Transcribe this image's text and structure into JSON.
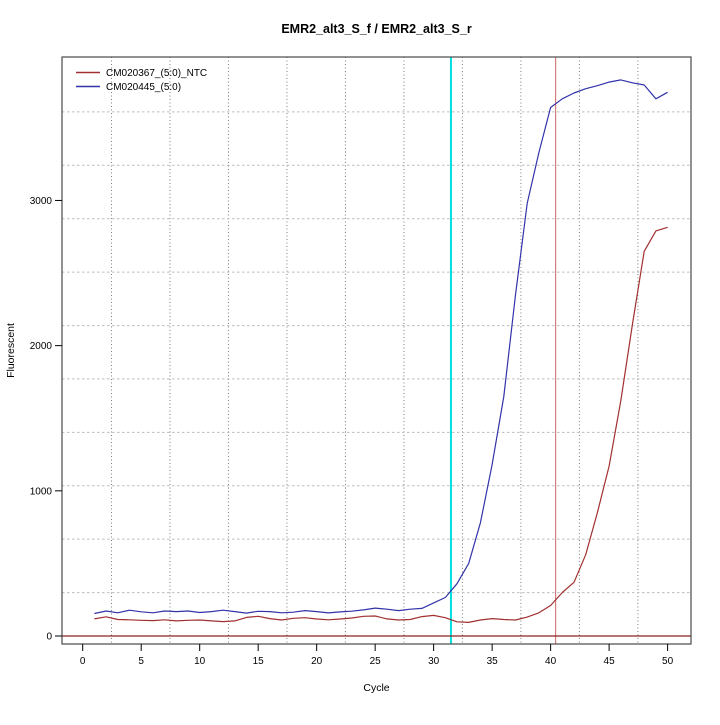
{
  "title": "EMR2_alt3_S_f / EMR2_alt3_S_r",
  "chart_data": {
    "type": "line",
    "title": "EMR2_alt3_S_f / EMR2_alt3_S_r",
    "xlabel": "Cycle",
    "ylabel": "Fluorescent",
    "legend_position": "top-left",
    "grid": true,
    "x_range": [
      -1.77,
      52.0
    ],
    "y_range": [
      -55,
      3988
    ],
    "x_ticks": [
      0,
      5,
      10,
      15,
      20,
      25,
      30,
      35,
      40,
      45,
      50
    ],
    "y_ticks": [
      0,
      1000,
      2000,
      3000
    ],
    "grid_x_lines": [
      2.46,
      7.46,
      12.46,
      17.46,
      22.46,
      27.46,
      32.46,
      37.46,
      42.46,
      47.46
    ],
    "grid_y_lines": [
      299,
      667,
      1035,
      1403,
      1771,
      2138,
      2506,
      2874,
      3242,
      3610
    ],
    "x": [
      1,
      2,
      3,
      4,
      5,
      6,
      7,
      8,
      9,
      10,
      11,
      12,
      13,
      14,
      15,
      16,
      17,
      18,
      19,
      20,
      21,
      22,
      23,
      24,
      25,
      26,
      27,
      28,
      29,
      30,
      31,
      32,
      33,
      34,
      35,
      36,
      37,
      38,
      39,
      40,
      41,
      42,
      43,
      44,
      45,
      46,
      47,
      48,
      49,
      50
    ],
    "series": [
      {
        "name": "CM020367_(5:0)_NTC",
        "color": "#A13030",
        "values": [
          118,
          132,
          114,
          112,
          108,
          106,
          112,
          104,
          108,
          110,
          104,
          99,
          104,
          128,
          136,
          120,
          110,
          122,
          126,
          117,
          112,
          117,
          124,
          136,
          138,
          118,
          110,
          114,
          134,
          142,
          126,
          98,
          94,
          110,
          120,
          114,
          110,
          130,
          160,
          210,
          300,
          370,
          560,
          850,
          1170,
          1620,
          2150,
          2650,
          2790,
          2815
        ]
      },
      {
        "name": "CM020445_(5:0)",
        "color": "#3333AA",
        "values": [
          155,
          172,
          160,
          178,
          167,
          160,
          172,
          168,
          172,
          162,
          168,
          178,
          168,
          158,
          170,
          168,
          160,
          164,
          175,
          168,
          159,
          166,
          171,
          180,
          192,
          185,
          175,
          185,
          190,
          228,
          265,
          360,
          500,
          780,
          1180,
          1650,
          2350,
          2980,
          3330,
          3640,
          3700,
          3740,
          3770,
          3790,
          3815,
          3830,
          3810,
          3795,
          3700,
          3745
        ]
      }
    ],
    "threshold_line": {
      "value": 0,
      "color": "#8B2222"
    },
    "ct_lines": [
      {
        "x": 31.48,
        "color": "#00E0E0",
        "width": 2
      },
      {
        "x": 40.43,
        "color": "#CC6666",
        "width": 1
      }
    ]
  }
}
